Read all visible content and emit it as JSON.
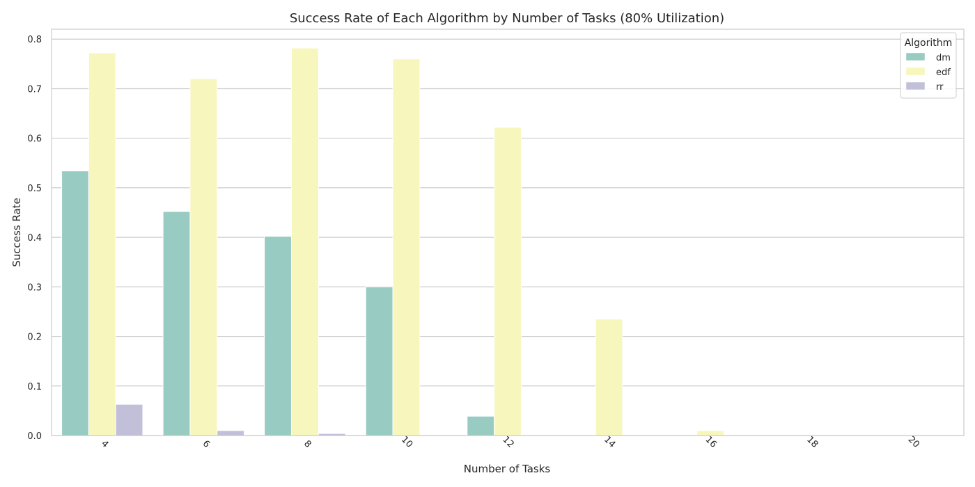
{
  "chart_data": {
    "type": "bar",
    "title": "Success Rate of Each Algorithm by Number of Tasks (80% Utilization)",
    "xlabel": "Number of Tasks",
    "ylabel": "Success Rate",
    "categories": [
      "4",
      "6",
      "8",
      "10",
      "12",
      "14",
      "16",
      "18",
      "20"
    ],
    "ylim": [
      0,
      0.82
    ],
    "yticks": [
      "0.0",
      "0.1",
      "0.2",
      "0.3",
      "0.4",
      "0.5",
      "0.6",
      "0.7",
      "0.8"
    ],
    "grid": true,
    "legend_title": "Algorithm",
    "legend_position": "top-right",
    "series": [
      {
        "name": "dm",
        "color": "#98cbc1",
        "values": [
          0.534,
          0.452,
          0.402,
          0.3,
          0.039,
          0.0,
          0.0,
          0.0,
          0.0
        ]
      },
      {
        "name": "edf",
        "color": "#f7f7bd",
        "values": [
          0.772,
          0.72,
          0.782,
          0.76,
          0.622,
          0.235,
          0.01,
          0.0,
          0.0
        ]
      },
      {
        "name": "rr",
        "color": "#c2bfd9",
        "values": [
          0.063,
          0.01,
          0.004,
          0.0,
          0.0,
          0.0,
          0.0,
          0.0,
          0.0
        ]
      }
    ]
  }
}
